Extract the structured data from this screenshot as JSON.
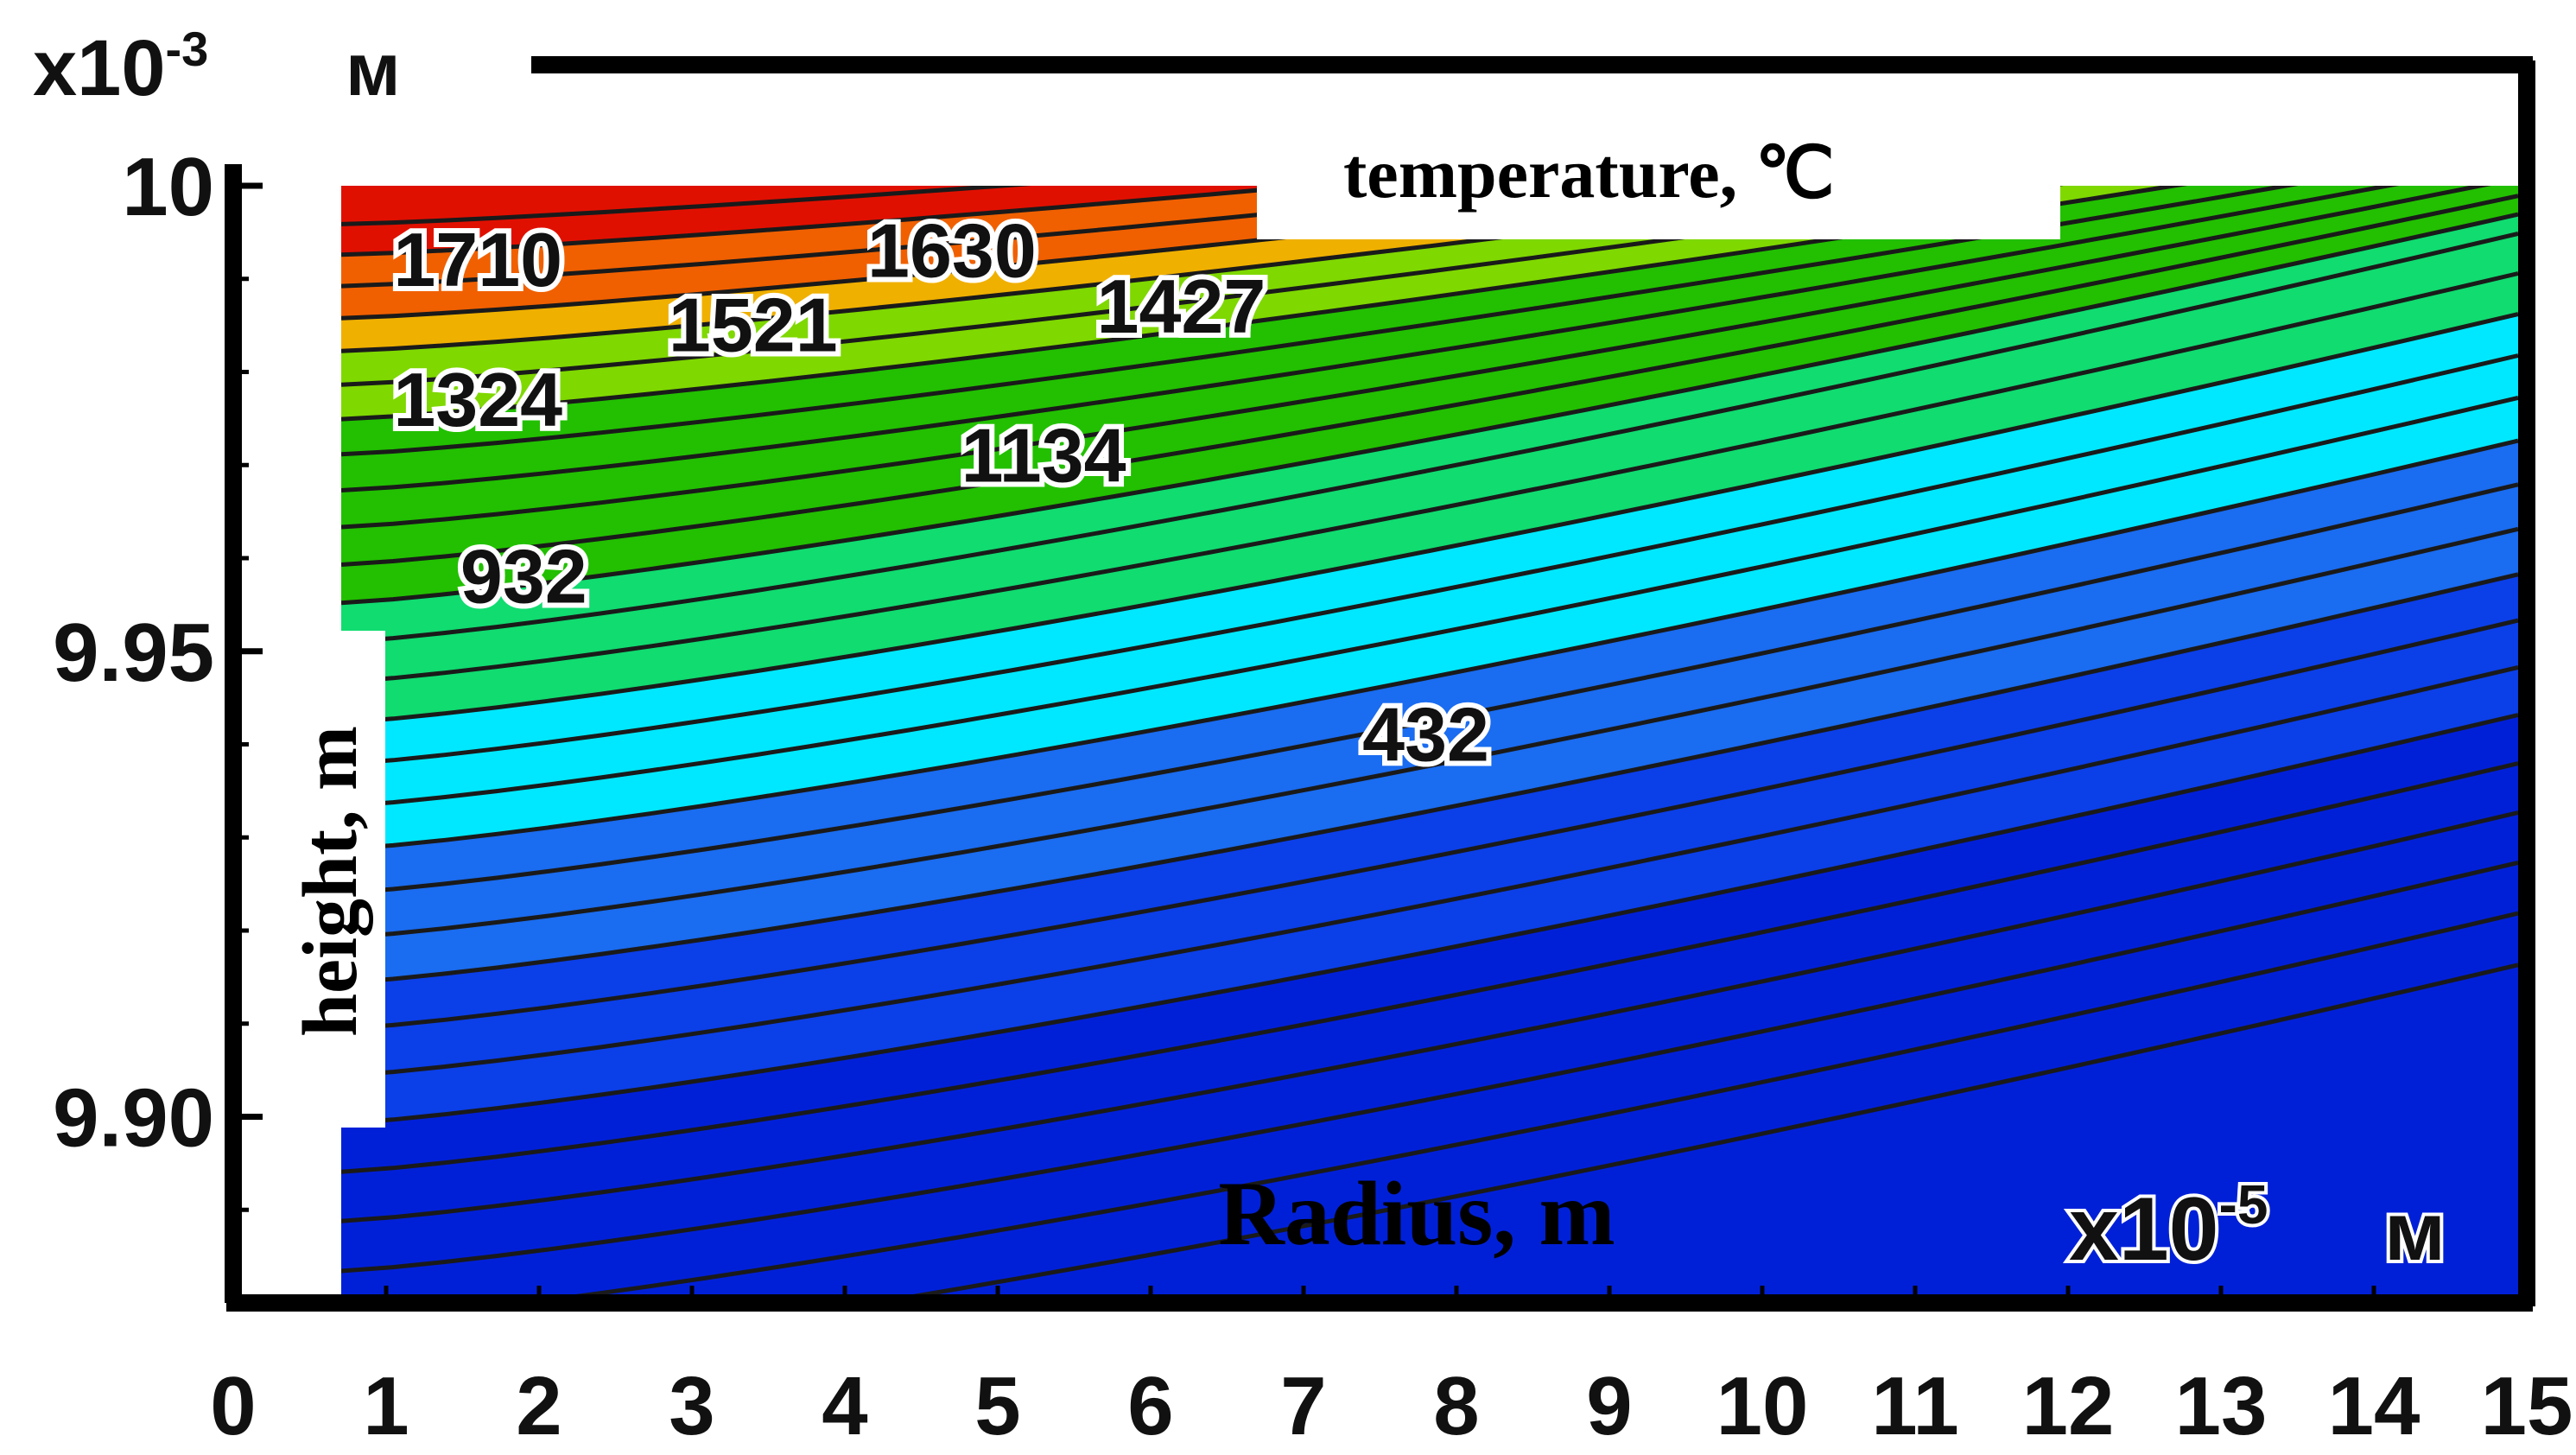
{
  "chart_data": {
    "type": "contour",
    "title": "temperature, ℃",
    "xlabel": "Radius, m",
    "ylabel": "height, m",
    "x_multiplier": "x10",
    "x_multiplier_exp": "-5",
    "x_multiplier_unit": "м",
    "y_multiplier": "x10",
    "y_multiplier_exp": "-3",
    "y_multiplier_unit": "м",
    "xlim": [
      0,
      15
    ],
    "ylim": [
      9.88,
      10.0
    ],
    "x_ticks": [
      "0",
      "1",
      "2",
      "3",
      "4",
      "5",
      "6",
      "7",
      "8",
      "9",
      "10",
      "11",
      "12",
      "13",
      "14",
      "15"
    ],
    "y_ticks": [
      {
        "value": 10.0,
        "label": "10"
      },
      {
        "value": 9.95,
        "label": "9.95"
      },
      {
        "value": 9.9,
        "label": "9.90"
      }
    ],
    "contour_labels": [
      {
        "text": "1710",
        "x": 1.6,
        "y": 9.992
      },
      {
        "text": "1630",
        "x": 4.7,
        "y": 9.993
      },
      {
        "text": "1521",
        "x": 3.4,
        "y": 9.985
      },
      {
        "text": "1427",
        "x": 6.2,
        "y": 9.987
      },
      {
        "text": "1324",
        "x": 1.6,
        "y": 9.977
      },
      {
        "text": "1134",
        "x": 5.3,
        "y": 9.971
      },
      {
        "text": "932",
        "x": 1.9,
        "y": 9.958
      },
      {
        "text": "432",
        "x": 7.8,
        "y": 9.941
      }
    ],
    "color_scale": [
      "#0020d8",
      "#0b3fe8",
      "#1a6cf0",
      "#00e8ff",
      "#10dc70",
      "#22c000",
      "#7fd800",
      "#f0b000",
      "#f06000",
      "#e01000"
    ]
  }
}
